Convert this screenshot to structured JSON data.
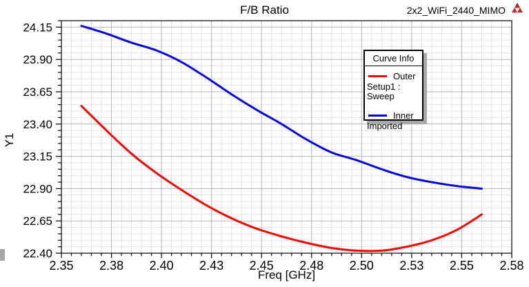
{
  "header": {
    "title": "F/B Ratio",
    "project": "2x2_WiFi_2440_MIMO",
    "logo": "ansoft-triangle-logo"
  },
  "chart_data": {
    "type": "line",
    "title": "F/B Ratio",
    "xlabel": "Freq [GHz]",
    "ylabel": "Y1",
    "grid": true,
    "x_axis": {
      "min": 2.35,
      "max": 2.575,
      "minor_step": 0.005,
      "tick_values": [
        2.35,
        2.375,
        2.4,
        2.425,
        2.45,
        2.475,
        2.5,
        2.525,
        2.55,
        2.575
      ],
      "tick_labels": [
        "2.35",
        "2.38",
        "2.40",
        "2.43",
        "2.45",
        "2.48",
        "2.50",
        "2.53",
        "2.55",
        "2.58"
      ]
    },
    "y_axis": {
      "min": 22.4,
      "max": 24.2,
      "minor_step": 0.05,
      "tick_values": [
        22.4,
        22.65,
        22.9,
        23.15,
        23.4,
        23.65,
        23.9,
        24.15
      ],
      "tick_labels": [
        "22.40",
        "22.65",
        "22.90",
        "23.15",
        "23.40",
        "23.65",
        "23.90",
        "24.15"
      ]
    },
    "legend": {
      "title": "Curve Info",
      "position": "upper-right-inset",
      "entries": [
        {
          "label": "Outer",
          "sublabel": "Setup1 : Sweep",
          "color": "#ff0000"
        },
        {
          "label": "Inner",
          "sublabel": "Imported",
          "color": "#0000ee"
        }
      ]
    },
    "series": [
      {
        "name": "Outer",
        "detail": "Setup1 : Sweep",
        "color": "#ff0000",
        "x": [
          2.36,
          2.3725,
          2.385,
          2.3975,
          2.41,
          2.4225,
          2.435,
          2.4475,
          2.46,
          2.4725,
          2.485,
          2.4975,
          2.51,
          2.5225,
          2.535,
          2.5475,
          2.56
        ],
        "y": [
          23.54,
          23.35,
          23.17,
          23.02,
          22.89,
          22.77,
          22.67,
          22.59,
          22.53,
          22.48,
          22.44,
          22.42,
          22.42,
          22.45,
          22.5,
          22.58,
          22.7
        ]
      },
      {
        "name": "Inner",
        "detail": "Imported",
        "color": "#0000ee",
        "x": [
          2.36,
          2.3725,
          2.385,
          2.3975,
          2.41,
          2.4225,
          2.435,
          2.4475,
          2.46,
          2.4725,
          2.485,
          2.4975,
          2.51,
          2.5225,
          2.535,
          2.5475,
          2.56
        ],
        "y": [
          24.16,
          24.1,
          24.03,
          23.97,
          23.88,
          23.76,
          23.63,
          23.51,
          23.4,
          23.28,
          23.18,
          23.12,
          23.05,
          22.99,
          22.95,
          22.92,
          22.9
        ]
      }
    ],
    "colors": {
      "frame": "#000000",
      "major_grid": "#b5b5b5",
      "minor_grid": "#e2e2e2",
      "background": "#ffffff",
      "logo_red": "#c22a27"
    }
  }
}
